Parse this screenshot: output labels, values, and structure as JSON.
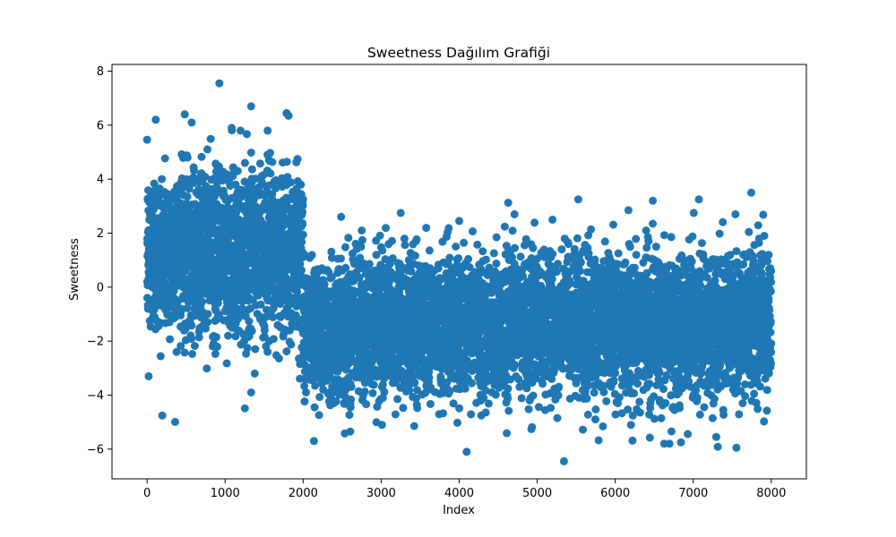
{
  "chart_data": {
    "type": "scatter",
    "title": "Sweetness Dağılım Grafiği",
    "xlabel": "Index",
    "ylabel": "Sweetness",
    "xlim": [
      -450,
      8450
    ],
    "ylim": [
      -7.1,
      8.25
    ],
    "x_ticks": [
      0,
      1000,
      2000,
      3000,
      4000,
      5000,
      6000,
      7000,
      8000
    ],
    "y_ticks": [
      -6,
      -4,
      -2,
      0,
      2,
      4,
      6,
      8
    ],
    "grid": false,
    "legend": "none",
    "marker_color": "#1f77b4",
    "n_points": 8000,
    "segments": [
      {
        "x_range": [
          0,
          1999
        ],
        "center": 1.3,
        "spread": 1.5
      },
      {
        "x_range": [
          2000,
          7999
        ],
        "center": -1.4,
        "spread": 1.25
      }
    ],
    "points": [
      {
        "x": 926,
        "y": 7.55
      },
      {
        "x": 1333,
        "y": 6.7
      },
      {
        "x": 483,
        "y": 6.4
      },
      {
        "x": 1814,
        "y": 6.35
      },
      {
        "x": 110,
        "y": 6.2
      },
      {
        "x": 571,
        "y": 6.1
      },
      {
        "x": 1084,
        "y": 5.9
      },
      {
        "x": 1545,
        "y": 5.8
      },
      {
        "x": 20,
        "y": -3.3
      },
      {
        "x": 1334,
        "y": -3.9
      },
      {
        "x": 2138,
        "y": -5.7
      },
      {
        "x": 2604,
        "y": -5.35
      },
      {
        "x": 4095,
        "y": -6.1
      },
      {
        "x": 5342,
        "y": -6.45
      },
      {
        "x": 6695,
        "y": -5.8
      },
      {
        "x": 7553,
        "y": -5.95
      },
      {
        "x": 7295,
        "y": -5.55
      },
      {
        "x": 6842,
        "y": -5.75
      },
      {
        "x": 7743,
        "y": 3.5
      },
      {
        "x": 7072,
        "y": 3.25
      },
      {
        "x": 5526,
        "y": 3.25
      },
      {
        "x": 6482,
        "y": 3.2
      },
      {
        "x": 6169,
        "y": 2.85
      },
      {
        "x": 3250,
        "y": 2.75
      },
      {
        "x": 4708,
        "y": 2.7
      },
      {
        "x": 5195,
        "y": 2.5
      },
      {
        "x": 4000,
        "y": 2.45
      },
      {
        "x": 2750,
        "y": 2.1
      },
      {
        "x": 7910,
        "y": 1.9
      },
      {
        "x": 7007,
        "y": 2.75
      },
      {
        "x": 7540,
        "y": 2.7
      }
    ]
  }
}
